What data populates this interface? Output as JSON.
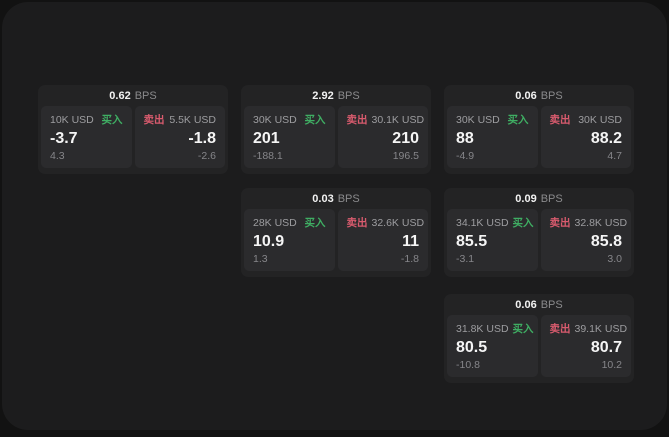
{
  "theme": {
    "green": "#3fae63",
    "red": "#d95b6e",
    "bg_outer": "#121212",
    "bg_window": "#1c1c1d",
    "bg_card": "#232324",
    "bg_panel": "#2b2b2d"
  },
  "labels": {
    "buy": "买入",
    "sell": "卖出",
    "bps_unit": "BPS"
  },
  "cards": [
    {
      "row": 0,
      "col": 0,
      "bps": "0.62",
      "buy": {
        "notional": "10K USD",
        "price": "-3.7",
        "delta": "4.3"
      },
      "sell": {
        "notional": "5.5K USD",
        "price": "-1.8",
        "delta": "-2.6"
      }
    },
    {
      "row": 0,
      "col": 1,
      "bps": "2.92",
      "buy": {
        "notional": "30K USD",
        "price": "201",
        "delta": "-188.1"
      },
      "sell": {
        "notional": "30.1K USD",
        "price": "210",
        "delta": "196.5"
      }
    },
    {
      "row": 0,
      "col": 2,
      "bps": "0.06",
      "buy": {
        "notional": "30K USD",
        "price": "88",
        "delta": "-4.9"
      },
      "sell": {
        "notional": "30K USD",
        "price": "88.2",
        "delta": "4.7"
      }
    },
    {
      "row": 1,
      "col": 1,
      "bps": "0.03",
      "buy": {
        "notional": "28K USD",
        "price": "10.9",
        "delta": "1.3"
      },
      "sell": {
        "notional": "32.6K USD",
        "price": "11",
        "delta": "-1.8"
      }
    },
    {
      "row": 1,
      "col": 2,
      "bps": "0.09",
      "buy": {
        "notional": "34.1K USD",
        "price": "85.5",
        "delta": "-3.1"
      },
      "sell": {
        "notional": "32.8K USD",
        "price": "85.8",
        "delta": "3.0"
      }
    },
    {
      "row": 2,
      "col": 2,
      "bps": "0.06",
      "buy": {
        "notional": "31.8K USD",
        "price": "80.5",
        "delta": "-10.8"
      },
      "sell": {
        "notional": "39.1K USD",
        "price": "80.7",
        "delta": "10.2"
      }
    }
  ]
}
